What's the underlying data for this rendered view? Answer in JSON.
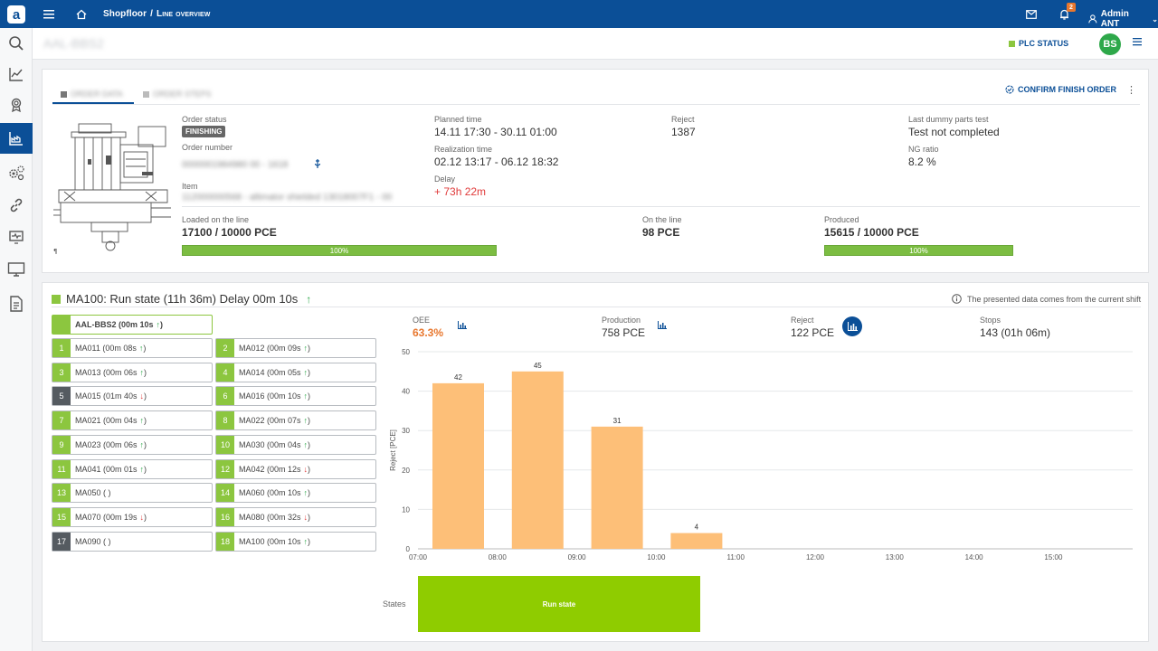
{
  "topbar": {
    "logo": "a",
    "breadcrumb_root": "Shopfloor",
    "breadcrumb_sep": "/",
    "breadcrumb_page": "Line overview",
    "notifications_count": "2",
    "user_name": "Admin ANT"
  },
  "header": {
    "title": "AAL-BBS2",
    "plc_status": "PLC STATUS",
    "avatar_initials": "BS",
    "plc_color": "#8cc63f",
    "avatar_color": "#2ea84a"
  },
  "order": {
    "tab1": "ORDER DATA",
    "tab2": "ORDER STEPS",
    "confirm_finish": "CONFIRM FINISH ORDER",
    "order_status_label": "Order status",
    "order_status": "FINISHING",
    "order_number_label": "Order number",
    "order_number": "0000001984980 00 - 1618",
    "item_label": "Item",
    "item": "112000000568 - altimator shielded 13018007F1 - 00",
    "planned_time_label": "Planned time",
    "planned_time": "14.11 17:30 - 30.11 01:00",
    "realization_time_label": "Realization time",
    "realization_time": "02.12 13:17 - 06.12 18:32",
    "delay_label": "Delay",
    "delay": "+ 73h 22m",
    "reject_label": "Reject",
    "reject": "1387",
    "last_dummy_label": "Last dummy parts test",
    "last_dummy": "Test not completed",
    "ng_ratio_label": "NG ratio",
    "ng_ratio": "8.2 %",
    "loaded_label": "Loaded on the line",
    "loaded": "17100 / 10000 PCE",
    "loaded_progress": "100%",
    "on_line_label": "On the line",
    "on_line": "98 PCE",
    "produced_label": "Produced",
    "produced": "15615 / 10000 PCE",
    "produced_progress": "100%"
  },
  "station": {
    "heading": "MA100: Run state (11h 36m) Delay 00m 10s",
    "note": "The presented data comes from the current shift",
    "main_machine": "AAL-BBS2 (00m 10s",
    "machines": [
      {
        "num": "1",
        "label": "MA011 (00m 08s",
        "trend": "up",
        "color": "#8cc63f"
      },
      {
        "num": "2",
        "label": "MA012 (00m 09s",
        "trend": "up",
        "color": "#8cc63f"
      },
      {
        "num": "3",
        "label": "MA013 (00m 06s",
        "trend": "up",
        "color": "#8cc63f"
      },
      {
        "num": "4",
        "label": "MA014 (00m 05s",
        "trend": "up",
        "color": "#8cc63f"
      },
      {
        "num": "5",
        "label": "MA015 (01m 40s",
        "trend": "down",
        "color": "#555b61"
      },
      {
        "num": "6",
        "label": "MA016 (00m 10s",
        "trend": "up",
        "color": "#8cc63f"
      },
      {
        "num": "7",
        "label": "MA021 (00m 04s",
        "trend": "up",
        "color": "#8cc63f"
      },
      {
        "num": "8",
        "label": "MA022 (00m 07s",
        "trend": "up",
        "color": "#8cc63f"
      },
      {
        "num": "9",
        "label": "MA023 (00m 06s",
        "trend": "up",
        "color": "#8cc63f"
      },
      {
        "num": "10",
        "label": "MA030 (00m 04s",
        "trend": "up",
        "color": "#8cc63f"
      },
      {
        "num": "11",
        "label": "MA041 (00m 01s",
        "trend": "up",
        "color": "#8cc63f"
      },
      {
        "num": "12",
        "label": "MA042 (00m 12s",
        "trend": "down",
        "color": "#8cc63f"
      },
      {
        "num": "13",
        "label": "MA050 ( )",
        "trend": "",
        "color": "#8cc63f"
      },
      {
        "num": "14",
        "label": "MA060 (00m 10s",
        "trend": "up",
        "color": "#8cc63f"
      },
      {
        "num": "15",
        "label": "MA070 (00m 19s",
        "trend": "down",
        "color": "#8cc63f"
      },
      {
        "num": "16",
        "label": "MA080 (00m 32s",
        "trend": "down",
        "color": "#8cc63f"
      },
      {
        "num": "17",
        "label": "MA090 ( )",
        "trend": "",
        "color": "#555b61"
      },
      {
        "num": "18",
        "label": "MA100 (00m 10s",
        "trend": "up",
        "color": "#8cc63f"
      }
    ],
    "kpis": {
      "oee_label": "OEE",
      "oee": "63.3%",
      "production_label": "Production",
      "production": "758 PCE",
      "reject_label": "Reject",
      "reject": "122 PCE",
      "stops_label": "Stops",
      "stops": "143 (01h 06m)"
    },
    "states_label": "States",
    "state_bar_label": "Run state",
    "state_color": "#8fcc00"
  },
  "chart_data": {
    "type": "bar",
    "categories": [
      "07:00",
      "08:00",
      "09:00",
      "10:00"
    ],
    "values": [
      42,
      45,
      31,
      4
    ],
    "x_ticks": [
      "07:00",
      "08:00",
      "09:00",
      "10:00",
      "11:00",
      "12:00",
      "13:00",
      "14:00",
      "15:00"
    ],
    "ylabel": "Reject [PCE]",
    "ylim": [
      0,
      50
    ],
    "y_ticks": [
      0,
      10,
      20,
      30,
      40,
      50
    ],
    "bar_color": "#fdbf78",
    "grid": true
  }
}
